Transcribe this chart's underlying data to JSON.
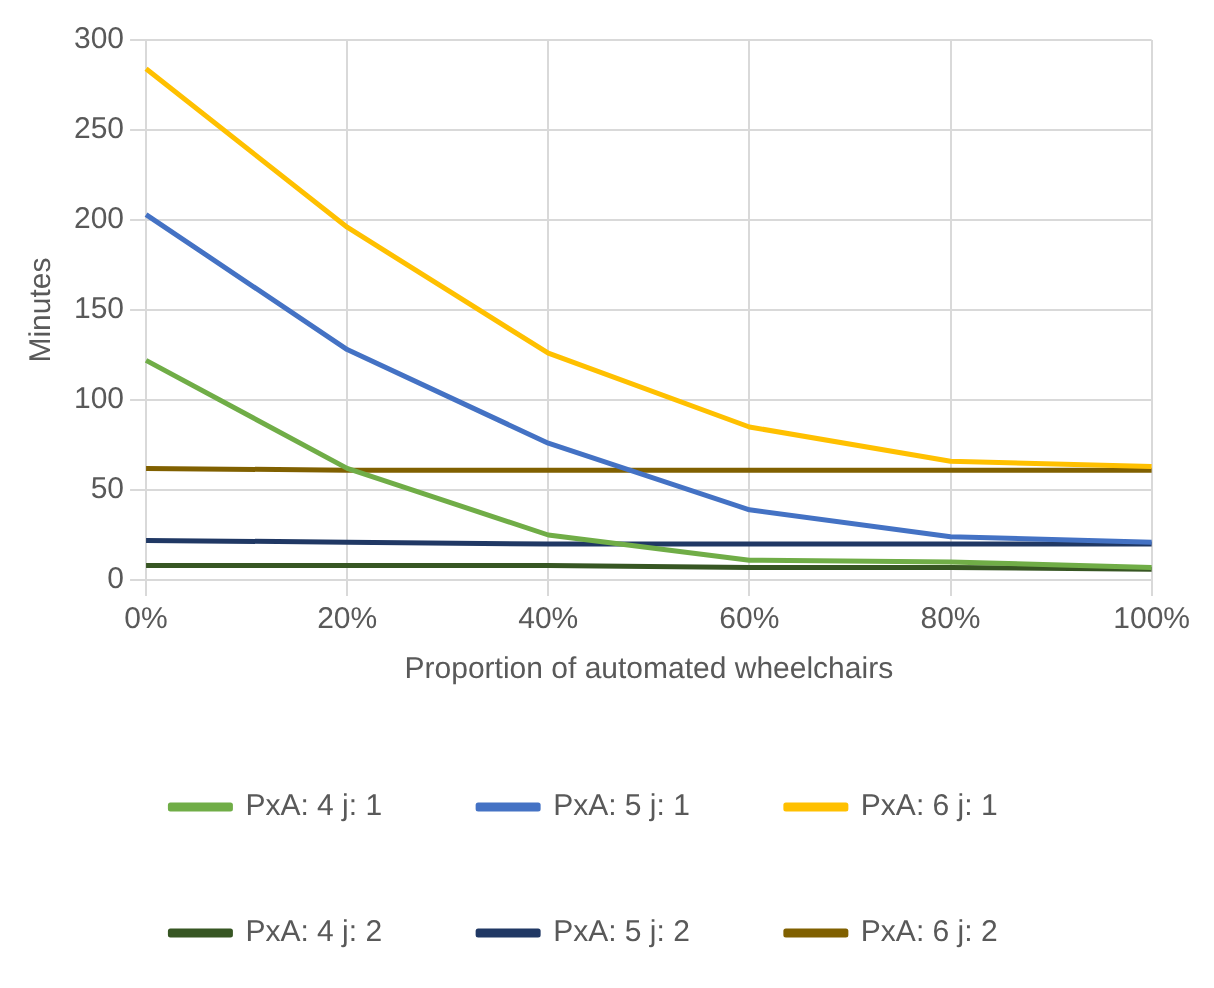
{
  "chart_data": {
    "type": "line",
    "xlabel": "Proportion of automated wheelchairs",
    "ylabel": "Minutes",
    "categories": [
      "0%",
      "20%",
      "40%",
      "60%",
      "80%",
      "100%"
    ],
    "ylim": [
      0,
      300
    ],
    "yticks": [
      0,
      50,
      100,
      150,
      200,
      250,
      300
    ],
    "grid": true,
    "legend": "bottom",
    "marker": "none",
    "line_style": "solid",
    "series": [
      {
        "name": "PxA: 4 j: 1",
        "color": "#70ad47",
        "values": [
          122,
          62,
          25,
          11,
          10,
          7
        ]
      },
      {
        "name": "PxA: 5 j: 1",
        "color": "#4472c4",
        "values": [
          203,
          128,
          76,
          39,
          24,
          21
        ]
      },
      {
        "name": "PxA: 6 j: 1",
        "color": "#ffc000",
        "values": [
          284,
          196,
          126,
          85,
          66,
          63
        ]
      },
      {
        "name": "PxA: 4 j: 2",
        "color": "#375623",
        "values": [
          8,
          8,
          8,
          7,
          7,
          6
        ]
      },
      {
        "name": "PxA: 5 j: 2",
        "color": "#203864",
        "values": [
          22,
          21,
          20,
          20,
          20,
          20
        ]
      },
      {
        "name": "PxA: 6 j: 2",
        "color": "#806000",
        "values": [
          62,
          61,
          61,
          61,
          61,
          61
        ]
      }
    ]
  }
}
